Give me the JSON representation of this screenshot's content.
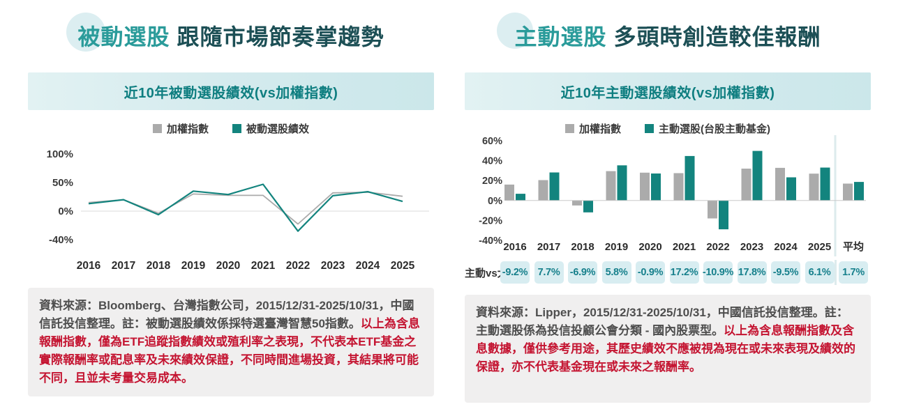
{
  "page": {
    "panels": [
      {
        "title_accent": "被動選股",
        "title_rest": "跟隨市場節奏掌趨勢",
        "banner": "近10年被動選股績效(vs加權指數)",
        "footnote_normal": "資料來源：Bloomberg、台灣指數公司，2015/12/31-2025/10/31，中國信託投信整理。註：被動選股績效係採特選臺灣智慧50指數。",
        "footnote_highlight": "以上為含息報酬指數，僅為ETF追蹤指數績效或殖利率之表現，不代表本ETF基金之實際報酬率或配息率及未來績效保證，不同時間進場投資，其結果將可能不同，且並未考量交易成本。"
      },
      {
        "title_accent": "主動選股",
        "title_rest": "多頭時創造較佳報酬",
        "banner": "近10年主動選股績效(vs加權指數)",
        "footnote_normal": "資料來源：Lipper，2015/12/31-2025/10/31，中國信託投信整理。註：主動選股係為投信投顧公會分類 - 國內股票型。",
        "footnote_highlight": "以上為含息報酬指數及含息數據，僅供參考用途，其歷史績效不應被視為現在或未來表現及績效的保證，亦不代表基金現在或未來之報酬率。"
      }
    ],
    "colors": {
      "accent_teal": "#2A9B9A",
      "dark_teal": "#1C4F55",
      "series_teal": "#13847E",
      "series_gray": "#ABABAB",
      "banner_text": "#0E7E80",
      "banner_bg": "#D5EBEE",
      "highlight_red": "#C41431",
      "diff_cell_bg": "#D8EDF1",
      "diff_cell_text": "#17808C"
    }
  },
  "chart_data": [
    {
      "type": "line",
      "title": "近10年被動選股績效(vs加權指數)",
      "categories": [
        "2016",
        "2017",
        "2018",
        "2019",
        "2020",
        "2021",
        "2022",
        "2023",
        "2024",
        "2025"
      ],
      "yticks": [
        100,
        50,
        0,
        -40
      ],
      "ylim": [
        -50,
        100
      ],
      "grid": "zero-line-only",
      "legend_position": "top",
      "series": [
        {
          "name": "加權指數",
          "color": "#ABABAB",
          "values": [
            15,
            20,
            -3,
            30,
            27.5,
            27.5,
            -18,
            32,
            33,
            26
          ]
        },
        {
          "name": "被動選股績效",
          "color": "#13847E",
          "values": [
            13,
            20,
            -5,
            35,
            29,
            47,
            -28,
            27,
            34,
            17
          ]
        }
      ]
    },
    {
      "type": "bar",
      "title": "近10年主動選股績效(vs加權指數)",
      "categories": [
        "2016",
        "2017",
        "2018",
        "2019",
        "2020",
        "2021",
        "2022",
        "2023",
        "2024",
        "2025",
        "平均"
      ],
      "yticks": [
        60,
        40,
        20,
        0,
        -20,
        -40
      ],
      "ylim": [
        -40,
        60
      ],
      "grid": "zero-line-only",
      "legend_position": "top",
      "separator_before": "平均",
      "series": [
        {
          "name": "加權指數",
          "color": "#ABABAB",
          "values": [
            16,
            20.5,
            -5,
            29.5,
            28,
            27.5,
            -18,
            32,
            32.8,
            27,
            17
          ]
        },
        {
          "name": "主動選股(台股主動基金)",
          "color": "#13847E",
          "values": [
            6.8,
            28.2,
            -11.9,
            35.3,
            27.1,
            44.7,
            -28.9,
            49.8,
            23.3,
            33.1,
            18.7
          ]
        }
      ],
      "diff_row": {
        "label": "主動vs大盤",
        "values": [
          "-9.2%",
          "7.7%",
          "-6.9%",
          "5.8%",
          "-0.9%",
          "17.2%",
          "-10.9%",
          "17.8%",
          "-9.5%",
          "6.1%",
          "1.7%"
        ]
      }
    }
  ]
}
